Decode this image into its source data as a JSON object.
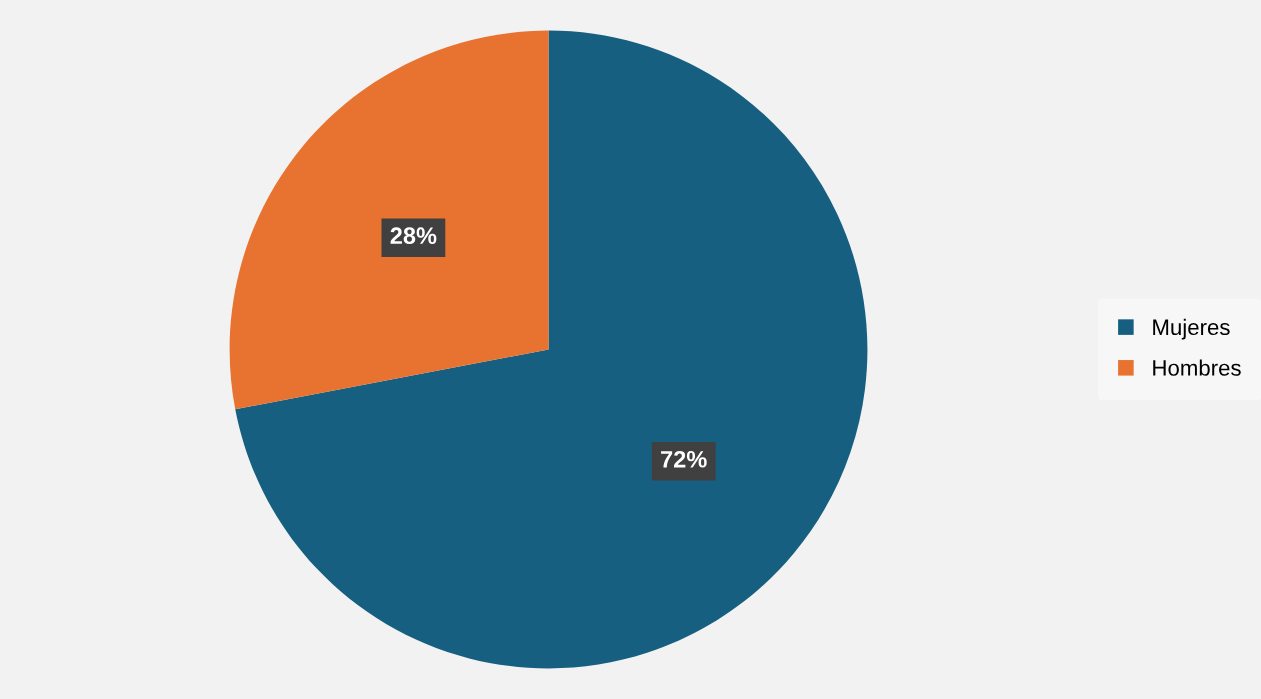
{
  "chart_data": {
    "type": "pie",
    "categories": [
      "Mujeres",
      "Hombres"
    ],
    "values": [
      72,
      28
    ],
    "colors": [
      "#175f80",
      "#e87230"
    ],
    "value_labels": [
      "72%",
      "28%"
    ],
    "legend": "right"
  }
}
